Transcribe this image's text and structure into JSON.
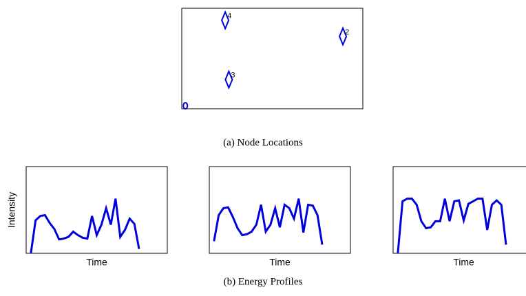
{
  "chart_data": [
    {
      "type": "scatter",
      "xlim": [
        0,
        100
      ],
      "ylim": [
        0,
        100
      ],
      "color": "#0000dd",
      "x": [
        2,
        89,
        26,
        24
      ],
      "y": [
        3,
        72,
        29,
        88
      ],
      "markers": [
        "o",
        "d",
        "d",
        "d"
      ],
      "labels": [
        null,
        "2",
        "3",
        "4"
      ]
    },
    {
      "type": "line",
      "ylabel": "Intensity",
      "xlabel": "Time",
      "xlim": [
        -1,
        29
      ],
      "ylim": [
        0,
        100
      ],
      "color": "#0000dd",
      "values": [
        0,
        38,
        43,
        44,
        35,
        28,
        16,
        17,
        19,
        25,
        21,
        18,
        17,
        43,
        21,
        33,
        52,
        33,
        63,
        19,
        27,
        40,
        34,
        5
      ]
    },
    {
      "type": "line",
      "xlabel": "Time",
      "xlim": [
        -1,
        29
      ],
      "ylim": [
        0,
        100
      ],
      "color": "#0000dd",
      "values": [
        14,
        44,
        52,
        53,
        42,
        29,
        21,
        22,
        25,
        33,
        56,
        25,
        33,
        52,
        30,
        56,
        52,
        40,
        63,
        24,
        56,
        55,
        44,
        10
      ]
    },
    {
      "type": "line",
      "xlabel": "Time",
      "xlim": [
        -1,
        29
      ],
      "ylim": [
        0,
        100
      ],
      "color": "#0000dd",
      "values": [
        0,
        60,
        63,
        63,
        56,
        37,
        29,
        30,
        37,
        37,
        63,
        37,
        60,
        61,
        38,
        57,
        60,
        63,
        63,
        27,
        56,
        61,
        56,
        10
      ]
    }
  ],
  "captions": [
    "(a)  Node Locations",
    "(b)  Energy Profiles"
  ]
}
